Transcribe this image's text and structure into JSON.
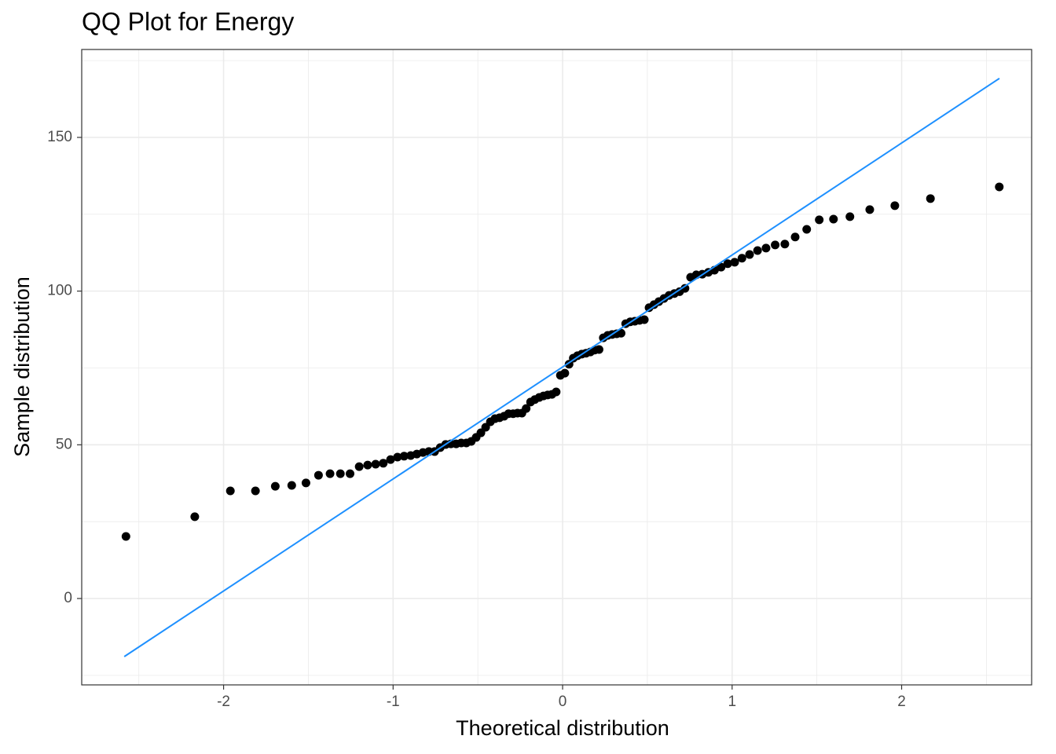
{
  "chart_data": {
    "type": "scatter",
    "title": "QQ Plot for Energy",
    "x_label": "Theoretical distribution",
    "y_label": "Sample distribution",
    "xlim": [
      -2.837,
      2.767
    ],
    "ylim": [
      -28.1,
      178.6
    ],
    "xticks": [
      -2,
      -1,
      0,
      1,
      2
    ],
    "yticks": [
      0,
      50,
      100,
      150
    ],
    "grid": true,
    "series": [
      {
        "mode": "points",
        "color": "#000000",
        "x": [
          -2.576,
          -2.17,
          -1.96,
          -1.812,
          -1.695,
          -1.598,
          -1.514,
          -1.44,
          -1.372,
          -1.311,
          -1.254,
          -1.2,
          -1.15,
          -1.103,
          -1.058,
          -1.015,
          -0.974,
          -0.935,
          -0.896,
          -0.86,
          -0.824,
          -0.789,
          -0.755,
          -0.722,
          -0.69,
          -0.659,
          -0.628,
          -0.598,
          -0.568,
          -0.539,
          -0.51,
          -0.482,
          -0.454,
          -0.426,
          -0.399,
          -0.372,
          -0.345,
          -0.319,
          -0.292,
          -0.266,
          -0.24,
          -0.215,
          -0.189,
          -0.164,
          -0.138,
          -0.113,
          -0.088,
          -0.063,
          -0.038,
          -0.013,
          0.013,
          0.038,
          0.063,
          0.088,
          0.113,
          0.138,
          0.164,
          0.189,
          0.215,
          0.24,
          0.266,
          0.292,
          0.319,
          0.345,
          0.372,
          0.399,
          0.426,
          0.454,
          0.482,
          0.51,
          0.539,
          0.568,
          0.598,
          0.628,
          0.659,
          0.69,
          0.722,
          0.755,
          0.789,
          0.824,
          0.86,
          0.896,
          0.935,
          0.974,
          1.015,
          1.058,
          1.103,
          1.15,
          1.2,
          1.254,
          1.311,
          1.372,
          1.44,
          1.514,
          1.598,
          1.695,
          1.812,
          1.96,
          2.17,
          2.576
        ],
        "values": [
          20.2,
          26.6,
          35.0,
          35.0,
          36.5,
          36.8,
          37.6,
          40.1,
          40.6,
          40.6,
          40.6,
          42.9,
          43.4,
          43.7,
          44.0,
          45.2,
          46.0,
          46.3,
          46.5,
          47.0,
          47.5,
          47.8,
          47.8,
          49.1,
          50.1,
          50.3,
          50.3,
          50.6,
          50.6,
          51.1,
          52.4,
          53.9,
          55.7,
          57.5,
          58.5,
          58.8,
          59.3,
          60.1,
          60.1,
          60.3,
          60.3,
          61.8,
          63.9,
          64.7,
          65.4,
          65.9,
          66.2,
          66.4,
          67.2,
          72.6,
          73.3,
          76.2,
          78.2,
          79.0,
          79.5,
          79.8,
          80.2,
          80.8,
          81.0,
          84.8,
          85.6,
          85.9,
          86.1,
          86.3,
          89.4,
          90.0,
          90.2,
          90.5,
          90.7,
          94.6,
          95.6,
          96.6,
          97.6,
          98.6,
          99.2,
          99.8,
          100.9,
          104.5,
          105.3,
          105.5,
          106.1,
          106.8,
          107.8,
          108.9,
          109.4,
          110.7,
          111.9,
          113.2,
          114.0,
          115.0,
          115.3,
          117.6,
          120.1,
          123.2,
          123.4,
          124.2,
          126.5,
          127.8,
          130.1,
          133.9
        ]
      },
      {
        "mode": "line",
        "color": "#1e90ff",
        "x": [
          -2.586,
          2.577
        ],
        "values": [
          -18.9,
          169.2
        ]
      }
    ]
  }
}
